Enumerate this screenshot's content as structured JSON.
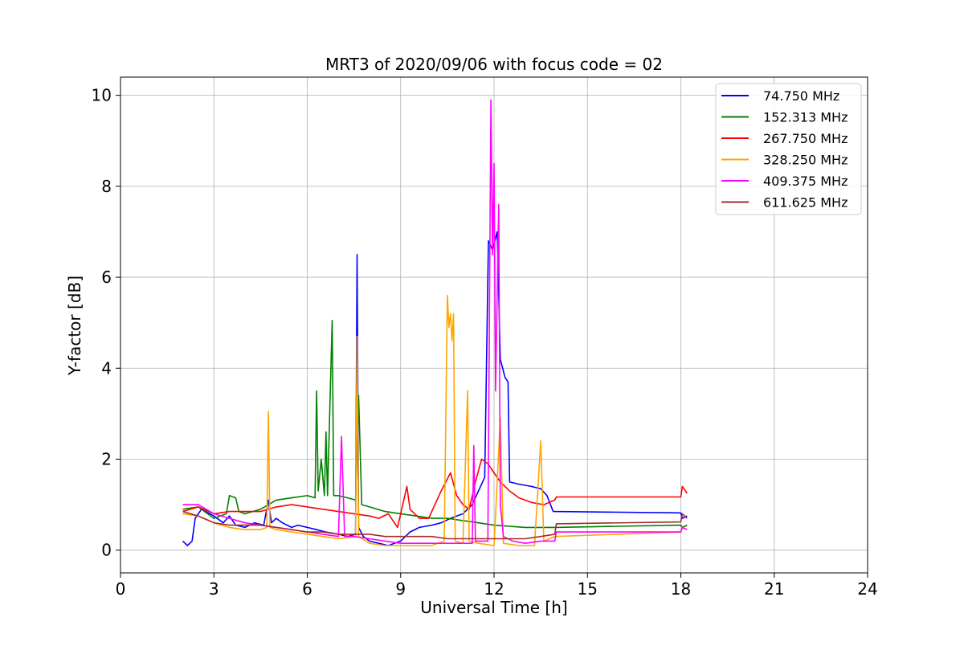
{
  "chart_data": {
    "type": "line",
    "title": "MRT3 of 2020/09/06 with focus code = 02",
    "xlabel": "Universal Time [h]",
    "ylabel": "Y-factor [dB]",
    "xlim": [
      0,
      24
    ],
    "ylim": [
      -0.5,
      10.4
    ],
    "xticks": [
      0,
      3,
      6,
      9,
      12,
      15,
      18,
      21,
      24
    ],
    "yticks": [
      0,
      2,
      4,
      6,
      8,
      10
    ],
    "xtick_labels": [
      "0",
      "3",
      "6",
      "9",
      "12",
      "15",
      "18",
      "21",
      "24"
    ],
    "ytick_labels": [
      "0",
      "2",
      "4",
      "6",
      "8",
      "10"
    ],
    "grid": true,
    "legend_position": "top-right",
    "series": [
      {
        "name": " 74.750 MHz",
        "color": "#0000ff",
        "points": [
          [
            2.0,
            0.2
          ],
          [
            2.15,
            0.1
          ],
          [
            2.3,
            0.2
          ],
          [
            2.4,
            0.7
          ],
          [
            2.6,
            0.9
          ],
          [
            3.0,
            0.75
          ],
          [
            3.3,
            0.6
          ],
          [
            3.5,
            0.75
          ],
          [
            3.7,
            0.55
          ],
          [
            4.0,
            0.5
          ],
          [
            4.3,
            0.6
          ],
          [
            4.6,
            0.55
          ],
          [
            4.75,
            1.1
          ],
          [
            4.85,
            0.6
          ],
          [
            5.0,
            0.7
          ],
          [
            5.2,
            0.6
          ],
          [
            5.5,
            0.5
          ],
          [
            5.7,
            0.55
          ],
          [
            6.0,
            0.5
          ],
          [
            6.3,
            0.45
          ],
          [
            6.6,
            0.4
          ],
          [
            7.0,
            0.35
          ],
          [
            7.3,
            0.3
          ],
          [
            7.55,
            0.35
          ],
          [
            7.6,
            6.5
          ],
          [
            7.65,
            0.5
          ],
          [
            7.8,
            0.3
          ],
          [
            8.0,
            0.2
          ],
          [
            8.3,
            0.15
          ],
          [
            8.6,
            0.1
          ],
          [
            9.0,
            0.2
          ],
          [
            9.3,
            0.4
          ],
          [
            9.6,
            0.5
          ],
          [
            10.0,
            0.55
          ],
          [
            10.3,
            0.6
          ],
          [
            10.6,
            0.7
          ],
          [
            11.0,
            0.8
          ],
          [
            11.3,
            1.0
          ],
          [
            11.5,
            1.3
          ],
          [
            11.7,
            1.6
          ],
          [
            11.82,
            6.8
          ],
          [
            11.95,
            6.6
          ],
          [
            12.1,
            7.0
          ],
          [
            12.2,
            4.2
          ],
          [
            12.35,
            3.8
          ],
          [
            12.45,
            3.7
          ],
          [
            12.5,
            1.5
          ],
          [
            12.8,
            1.45
          ],
          [
            13.2,
            1.4
          ],
          [
            13.5,
            1.35
          ],
          [
            13.7,
            1.2
          ],
          [
            13.9,
            0.85
          ],
          [
            18.0,
            0.82
          ],
          [
            18.05,
            0.7
          ],
          [
            18.2,
            0.75
          ]
        ]
      },
      {
        "name": "152.313 MHz",
        "color": "#008000",
        "points": [
          [
            2.0,
            0.9
          ],
          [
            2.5,
            0.95
          ],
          [
            3.0,
            0.7
          ],
          [
            3.4,
            0.8
          ],
          [
            3.5,
            1.2
          ],
          [
            3.7,
            1.15
          ],
          [
            3.8,
            0.85
          ],
          [
            4.0,
            0.8
          ],
          [
            4.5,
            0.9
          ],
          [
            5.0,
            1.1
          ],
          [
            5.5,
            1.15
          ],
          [
            6.0,
            1.2
          ],
          [
            6.25,
            1.15
          ],
          [
            6.3,
            3.5
          ],
          [
            6.35,
            1.3
          ],
          [
            6.45,
            2.0
          ],
          [
            6.55,
            1.2
          ],
          [
            6.6,
            2.6
          ],
          [
            6.65,
            1.2
          ],
          [
            6.8,
            5.05
          ],
          [
            6.85,
            1.2
          ],
          [
            7.0,
            1.2
          ],
          [
            7.3,
            1.15
          ],
          [
            7.55,
            1.1
          ],
          [
            7.65,
            3.4
          ],
          [
            7.75,
            1.0
          ],
          [
            8.0,
            0.95
          ],
          [
            8.5,
            0.85
          ],
          [
            9.0,
            0.8
          ],
          [
            9.5,
            0.75
          ],
          [
            10.0,
            0.7
          ],
          [
            10.5,
            0.7
          ],
          [
            11.0,
            0.65
          ],
          [
            11.5,
            0.6
          ],
          [
            12.0,
            0.55
          ],
          [
            13.0,
            0.5
          ],
          [
            13.95,
            0.5
          ],
          [
            18.0,
            0.55
          ],
          [
            18.05,
            0.5
          ],
          [
            18.2,
            0.55
          ]
        ]
      },
      {
        "name": "267.750 MHz",
        "color": "#ff0000",
        "points": [
          [
            2.0,
            0.85
          ],
          [
            2.5,
            0.95
          ],
          [
            3.0,
            0.8
          ],
          [
            3.5,
            0.85
          ],
          [
            4.0,
            0.85
          ],
          [
            4.5,
            0.85
          ],
          [
            5.0,
            0.95
          ],
          [
            5.5,
            1.0
          ],
          [
            6.0,
            0.95
          ],
          [
            6.5,
            0.9
          ],
          [
            7.0,
            0.85
          ],
          [
            7.5,
            0.8
          ],
          [
            8.0,
            0.75
          ],
          [
            8.3,
            0.7
          ],
          [
            8.6,
            0.8
          ],
          [
            8.9,
            0.5
          ],
          [
            9.2,
            1.4
          ],
          [
            9.3,
            0.9
          ],
          [
            9.6,
            0.7
          ],
          [
            9.9,
            0.7
          ],
          [
            10.1,
            1.0
          ],
          [
            10.3,
            1.3
          ],
          [
            10.6,
            1.7
          ],
          [
            10.8,
            1.2
          ],
          [
            11.0,
            1.0
          ],
          [
            11.2,
            0.9
          ],
          [
            11.4,
            1.5
          ],
          [
            11.6,
            2.0
          ],
          [
            11.8,
            1.9
          ],
          [
            12.0,
            1.7
          ],
          [
            12.2,
            1.5
          ],
          [
            12.5,
            1.3
          ],
          [
            12.8,
            1.15
          ],
          [
            13.2,
            1.05
          ],
          [
            13.6,
            1.0
          ],
          [
            13.95,
            1.1
          ],
          [
            14.0,
            1.17
          ],
          [
            18.0,
            1.17
          ],
          [
            18.05,
            1.4
          ],
          [
            18.2,
            1.25
          ]
        ]
      },
      {
        "name": "328.250 MHz",
        "color": "#ffa500",
        "points": [
          [
            2.0,
            0.8
          ],
          [
            2.5,
            0.75
          ],
          [
            3.0,
            0.6
          ],
          [
            3.5,
            0.5
          ],
          [
            4.0,
            0.45
          ],
          [
            4.5,
            0.45
          ],
          [
            4.7,
            0.5
          ],
          [
            4.75,
            3.05
          ],
          [
            4.8,
            0.5
          ],
          [
            5.0,
            0.45
          ],
          [
            5.5,
            0.4
          ],
          [
            6.0,
            0.35
          ],
          [
            6.5,
            0.3
          ],
          [
            7.0,
            0.25
          ],
          [
            7.55,
            0.3
          ],
          [
            7.6,
            4.7
          ],
          [
            7.65,
            0.3
          ],
          [
            8.0,
            0.15
          ],
          [
            8.5,
            0.1
          ],
          [
            9.0,
            0.1
          ],
          [
            9.5,
            0.1
          ],
          [
            10.0,
            0.1
          ],
          [
            10.4,
            0.2
          ],
          [
            10.5,
            5.6
          ],
          [
            10.55,
            4.9
          ],
          [
            10.6,
            5.2
          ],
          [
            10.65,
            4.6
          ],
          [
            10.7,
            5.2
          ],
          [
            10.75,
            0.2
          ],
          [
            11.0,
            0.15
          ],
          [
            11.15,
            3.5
          ],
          [
            11.2,
            0.2
          ],
          [
            11.5,
            0.15
          ],
          [
            12.0,
            0.1
          ],
          [
            12.2,
            2.9
          ],
          [
            12.3,
            0.15
          ],
          [
            12.8,
            0.1
          ],
          [
            13.3,
            0.1
          ],
          [
            13.5,
            2.4
          ],
          [
            13.6,
            0.2
          ],
          [
            13.95,
            0.3
          ],
          [
            18.0,
            0.4
          ],
          [
            18.05,
            0.5
          ],
          [
            18.2,
            0.45
          ]
        ]
      },
      {
        "name": "409.375 MHz",
        "color": "#ff00ff",
        "points": [
          [
            2.0,
            1.0
          ],
          [
            2.5,
            1.0
          ],
          [
            3.0,
            0.8
          ],
          [
            3.5,
            0.7
          ],
          [
            4.0,
            0.6
          ],
          [
            4.5,
            0.55
          ],
          [
            5.0,
            0.5
          ],
          [
            5.5,
            0.45
          ],
          [
            6.0,
            0.4
          ],
          [
            6.5,
            0.35
          ],
          [
            7.0,
            0.3
          ],
          [
            7.1,
            2.5
          ],
          [
            7.2,
            0.3
          ],
          [
            7.5,
            0.3
          ],
          [
            8.0,
            0.25
          ],
          [
            8.5,
            0.2
          ],
          [
            9.0,
            0.15
          ],
          [
            9.5,
            0.15
          ],
          [
            10.0,
            0.15
          ],
          [
            10.5,
            0.15
          ],
          [
            11.0,
            0.15
          ],
          [
            11.3,
            0.15
          ],
          [
            11.35,
            2.3
          ],
          [
            11.4,
            0.2
          ],
          [
            11.8,
            0.2
          ],
          [
            11.9,
            9.9
          ],
          [
            11.95,
            6.5
          ],
          [
            12.0,
            8.5
          ],
          [
            12.05,
            3.5
          ],
          [
            12.15,
            7.6
          ],
          [
            12.2,
            1.0
          ],
          [
            12.3,
            0.3
          ],
          [
            12.6,
            0.2
          ],
          [
            13.0,
            0.15
          ],
          [
            13.5,
            0.2
          ],
          [
            13.95,
            0.2
          ],
          [
            14.0,
            0.4
          ],
          [
            18.0,
            0.4
          ],
          [
            18.05,
            0.5
          ],
          [
            18.2,
            0.45
          ]
        ]
      },
      {
        "name": "611.625 MHz",
        "color": "#a52a2a",
        "points": [
          [
            2.0,
            0.85
          ],
          [
            2.5,
            0.75
          ],
          [
            3.0,
            0.6
          ],
          [
            3.5,
            0.55
          ],
          [
            4.0,
            0.55
          ],
          [
            4.5,
            0.55
          ],
          [
            5.0,
            0.5
          ],
          [
            5.5,
            0.45
          ],
          [
            6.0,
            0.4
          ],
          [
            6.5,
            0.4
          ],
          [
            7.0,
            0.35
          ],
          [
            7.5,
            0.35
          ],
          [
            8.0,
            0.35
          ],
          [
            8.5,
            0.3
          ],
          [
            9.0,
            0.3
          ],
          [
            9.5,
            0.3
          ],
          [
            10.0,
            0.3
          ],
          [
            10.5,
            0.25
          ],
          [
            11.0,
            0.25
          ],
          [
            11.5,
            0.25
          ],
          [
            12.0,
            0.25
          ],
          [
            12.5,
            0.25
          ],
          [
            13.0,
            0.25
          ],
          [
            13.5,
            0.3
          ],
          [
            13.95,
            0.35
          ],
          [
            14.0,
            0.58
          ],
          [
            18.0,
            0.62
          ],
          [
            18.05,
            0.8
          ],
          [
            18.2,
            0.7
          ]
        ]
      }
    ]
  }
}
